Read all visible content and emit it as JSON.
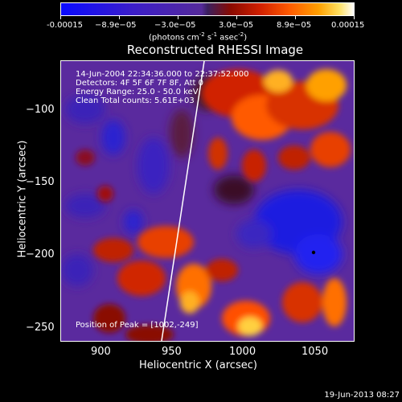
{
  "colorbar": {
    "tick_labels": [
      "-0.00015",
      "−8.9e−05",
      "−3.0e−05",
      "3.0e−05",
      "8.9e−05",
      "0.00015"
    ],
    "units_prefix": "(photons cm",
    "units_sup1": "-2",
    "units_mid1": " s",
    "units_sup2": "-1",
    "units_mid2": " asec",
    "units_sup3": "-2",
    "units_suffix": ")"
  },
  "plot": {
    "title": "Reconstructed RHESSI Image",
    "info": {
      "time_range": "14-Jun-2004 22:34:36.000 to 22:37:52.000",
      "detectors": "Detectors: 4F 5F 6F 7F 8F, Att 0",
      "energy_range": "Energy Range: 25.0 - 50.0 keV",
      "clean": "Clean     Total counts: 5.61E+03"
    },
    "peak_label": "Position of Peak = [1002,-249]",
    "x_axis_title": "Heliocentric X (arcsec)",
    "y_axis_title": "Heliocentric Y (arcsec)",
    "x_tick_labels": [
      "900",
      "950",
      "1000",
      "1050"
    ],
    "y_tick_labels": [
      "−100",
      "−150",
      "−200",
      "−250"
    ]
  },
  "footer": {
    "timestamp": "19-Jun-2013 08:27"
  }
}
